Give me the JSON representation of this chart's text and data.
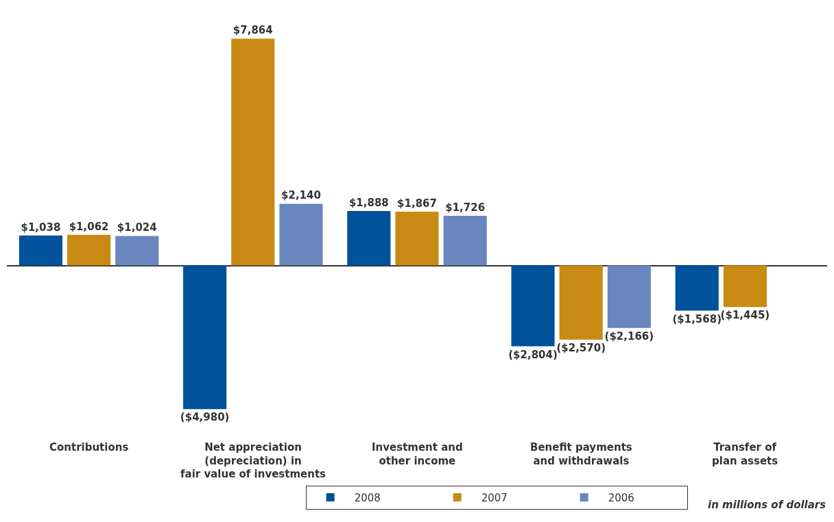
{
  "chart_data": {
    "type": "bar",
    "categories": [
      "Contributions",
      "Net appreciation\n(depreciation) in\nfair value of investments",
      "Investment and\nother income",
      "Benefit payments\nand withdrawals",
      "Transfer of\nplan assets"
    ],
    "series": [
      {
        "name": "2008",
        "color": "#00529b",
        "values": [
          1038,
          -4980,
          1888,
          -2804,
          -1568
        ],
        "value_labels": [
          "$1,038",
          "($4,980)",
          "$1,888",
          "($2,804)",
          "($1,568)"
        ]
      },
      {
        "name": "2007",
        "color": "#c88a12",
        "values": [
          1062,
          7864,
          1867,
          -2570,
          -1445
        ],
        "value_labels": [
          "$1,062",
          "$7,864",
          "$1,867",
          "($2,570)",
          "($1,445)"
        ]
      },
      {
        "name": "2006",
        "color": "#6a86bf",
        "values": [
          1024,
          2140,
          1726,
          -2166,
          null
        ],
        "value_labels": [
          "$1,024",
          "$2,140",
          "$1,726",
          "($2,166)",
          null
        ]
      }
    ],
    "legend": "bottom right",
    "annotations": [
      "in millions of dollars"
    ]
  }
}
